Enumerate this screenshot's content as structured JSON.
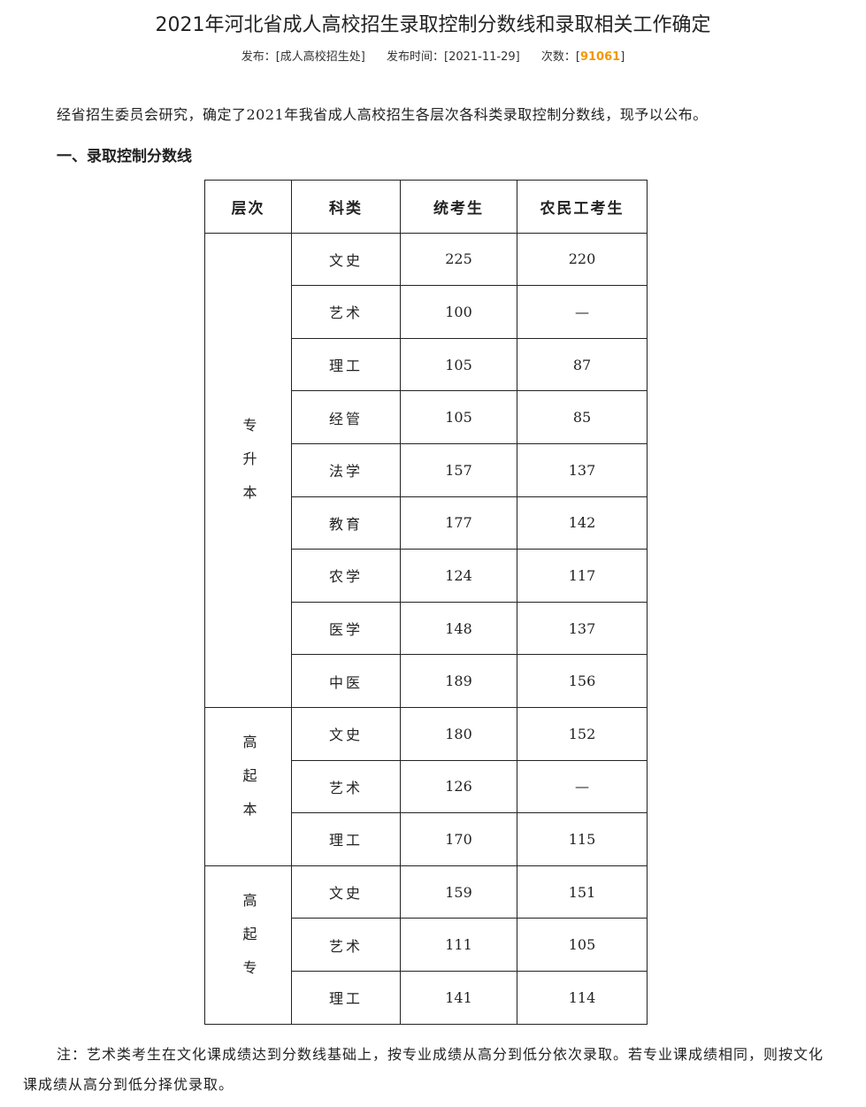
{
  "title": "2021年河北省成人高校招生录取控制分数线和录取相关工作确定",
  "meta": {
    "publisher_label": "发布：",
    "publisher": "[成人高校招生处]",
    "time_label": "发布时间：",
    "time": "[2021-11-29]",
    "views_label": "次数：",
    "views": "91061",
    "accent": "#f39800"
  },
  "intro": "经省招生委员会研究，确定了2021年我省成人高校招生各层次各科类录取控制分数线，现予以公布。",
  "section_heading": "一、录取控制分数线",
  "table": {
    "headers": [
      "层次",
      "科类",
      "统考生",
      "农民工考生"
    ],
    "groups": [
      {
        "level": "专升本",
        "rows": [
          [
            "文史",
            "225",
            "220"
          ],
          [
            "艺术",
            "100",
            "—"
          ],
          [
            "理工",
            "105",
            "87"
          ],
          [
            "经管",
            "105",
            "85"
          ],
          [
            "法学",
            "157",
            "137"
          ],
          [
            "教育",
            "177",
            "142"
          ],
          [
            "农学",
            "124",
            "117"
          ],
          [
            "医学",
            "148",
            "137"
          ],
          [
            "中医",
            "189",
            "156"
          ]
        ]
      },
      {
        "level": "高起本",
        "rows": [
          [
            "文史",
            "180",
            "152"
          ],
          [
            "艺术",
            "126",
            "—"
          ],
          [
            "理工",
            "170",
            "115"
          ]
        ]
      },
      {
        "level": "高起专",
        "rows": [
          [
            "文史",
            "159",
            "151"
          ],
          [
            "艺术",
            "111",
            "105"
          ],
          [
            "理工",
            "141",
            "114"
          ]
        ]
      }
    ]
  },
  "note": "注：艺术类考生在文化课成绩达到分数线基础上，按专业成绩从高分到低分依次录取。若专业课成绩相同，则按文化课成绩从高分到低分择优录取。"
}
